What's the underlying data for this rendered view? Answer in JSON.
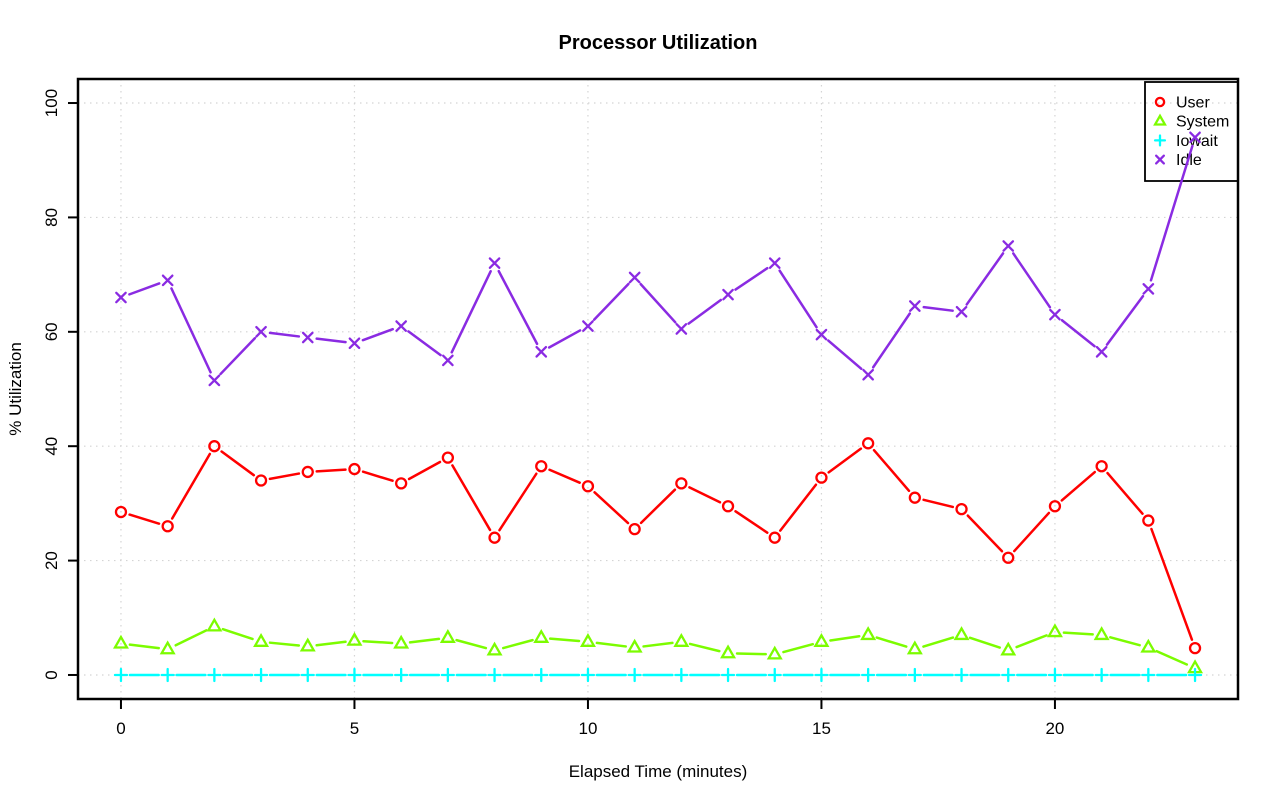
{
  "chart_data": {
    "type": "line",
    "title": "Processor Utilization",
    "xlabel": "Elapsed Time (minutes)",
    "ylabel": "% Utilization",
    "x": [
      0,
      1,
      2,
      3,
      4,
      5,
      6,
      7,
      8,
      9,
      10,
      11,
      12,
      13,
      14,
      15,
      16,
      17,
      18,
      19,
      20,
      21,
      22,
      23
    ],
    "series": [
      {
        "name": "User",
        "color": "#ff0000",
        "marker": "circle",
        "values": [
          28.5,
          26,
          40,
          34,
          35.5,
          36,
          33.5,
          38,
          24,
          36.5,
          33,
          25.5,
          33.5,
          29.5,
          24,
          34.5,
          40.5,
          31,
          29,
          20.5,
          29.5,
          36.5,
          27,
          4.7
        ]
      },
      {
        "name": "System",
        "color": "#7cfc00",
        "marker": "triangle",
        "values": [
          5.5,
          4.5,
          8.5,
          5.8,
          5,
          6,
          5.5,
          6.5,
          4.3,
          6.5,
          5.8,
          4.8,
          5.8,
          3.8,
          3.6,
          5.8,
          7,
          4.5,
          7,
          4.3,
          7.5,
          7,
          4.8,
          1.2
        ]
      },
      {
        "name": "Iowait",
        "color": "#00ffff",
        "marker": "plus",
        "values": [
          0,
          0,
          0,
          0,
          0,
          0,
          0,
          0,
          0,
          0,
          0,
          0,
          0,
          0,
          0,
          0,
          0,
          0,
          0,
          0,
          0,
          0,
          0,
          0
        ]
      },
      {
        "name": "Idle",
        "color": "#8a2be2",
        "marker": "x",
        "values": [
          66,
          69,
          51.5,
          60,
          59,
          58,
          61,
          55,
          72,
          56.5,
          61,
          69.5,
          60.5,
          66.5,
          72,
          59.5,
          52.5,
          64.5,
          63.5,
          75,
          63,
          56.5,
          67.5,
          94
        ]
      }
    ],
    "xticks": [
      0,
      5,
      10,
      15,
      20
    ],
    "yticks": [
      0,
      20,
      40,
      60,
      80,
      100
    ],
    "xlim": [
      -0.92,
      23.92
    ],
    "ylim": [
      -4.2,
      104.2
    ],
    "grid": "dotted",
    "grid_color": "#d4d4d4",
    "axis_color": "#000000",
    "legend_position": "top-right",
    "background": "#ffffff"
  }
}
